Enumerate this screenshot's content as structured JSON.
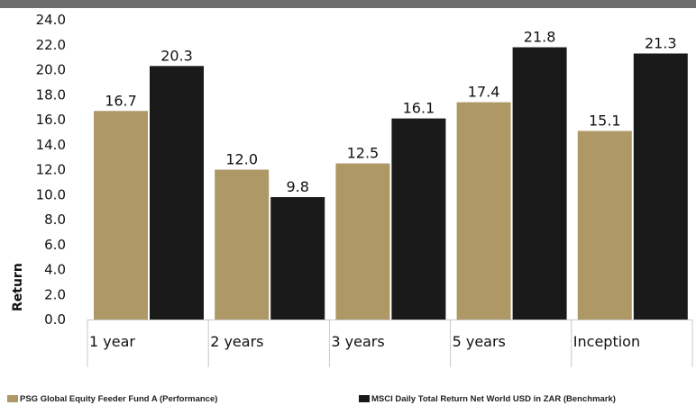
{
  "colors": {
    "performance": "#ad9866",
    "benchmark": "#1a1a1a",
    "topbar": "#6c6c6c"
  },
  "chart_data": {
    "type": "bar",
    "ylabel": "Return",
    "xlabel": "",
    "ylim": [
      0,
      24
    ],
    "ytick_step": 2,
    "ytick_labels": [
      "0.0",
      "2.0",
      "4.0",
      "6.0",
      "8.0",
      "10.0",
      "12.0",
      "14.0",
      "16.0",
      "18.0",
      "20.0",
      "22.0",
      "24.0"
    ],
    "categories": [
      "1 year",
      "2 years",
      "3 years",
      "5 years",
      "Inception"
    ],
    "series": [
      {
        "name": "PSG Global Equity Feeder Fund A (Performance)",
        "color": "#ad9866",
        "values": [
          16.7,
          12.0,
          12.5,
          17.4,
          15.1
        ],
        "labels": [
          "16.7",
          "12.0",
          "12.5",
          "17.4",
          "15.1"
        ]
      },
      {
        "name": "MSCI Daily Total Return Net World USD in ZAR (Benchmark)",
        "color": "#1a1a1a",
        "values": [
          20.3,
          9.8,
          16.1,
          21.8,
          21.3
        ],
        "labels": [
          "20.3",
          "9.8",
          "16.1",
          "21.8",
          "21.3"
        ]
      }
    ],
    "legend_position": "bottom",
    "grid": false,
    "data_labels": true
  }
}
